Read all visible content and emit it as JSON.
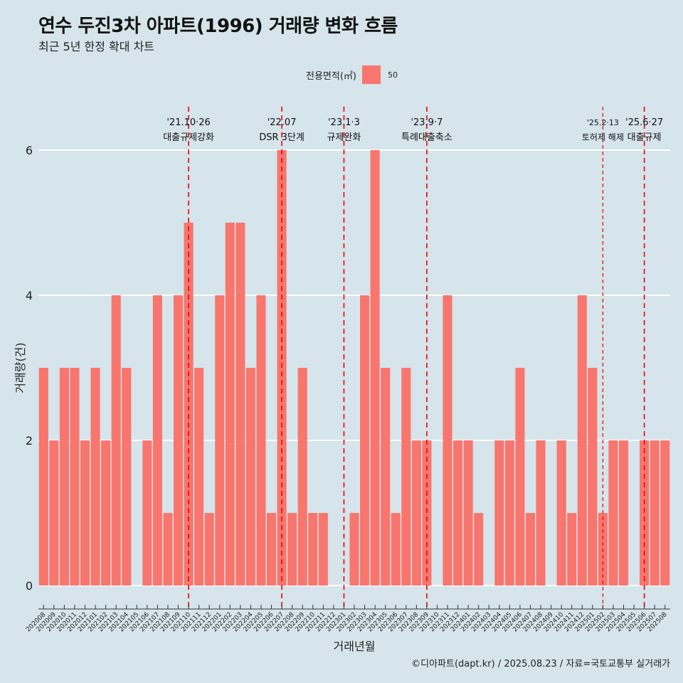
{
  "header": {
    "title": "연수 두진3차 아파트(1996) 거래량 변화 흐름",
    "subtitle": "최근 5년 한정 확대 차트"
  },
  "legend": {
    "title": "전용면적(㎡)",
    "entries": [
      {
        "label": "50",
        "color": "#f8766d"
      }
    ]
  },
  "caption": "©디아파트(dapt.kr) / 2025.08.23 / 자료=국토교통부 실거래가",
  "colors": {
    "background": "#d6e4eb",
    "bar": "#f8766d",
    "event_line": "#ee0000",
    "grid": "#ffffff"
  },
  "chart_data": {
    "type": "bar",
    "title": "연수 두진3차 아파트(1996) 거래량 변화 흐름",
    "subtitle": "최근 5년 한정 확대 차트",
    "xlabel": "거래년월",
    "ylabel": "거래량(건)",
    "ylim": [
      0,
      6
    ],
    "yticks": [
      0,
      2,
      4,
      6
    ],
    "grid": true,
    "legend_position": "top",
    "categories": [
      "202008",
      "202009",
      "202010",
      "202011",
      "202012",
      "202101",
      "202102",
      "202103",
      "202104",
      "202105",
      "202106",
      "202107",
      "202108",
      "202109",
      "202110",
      "202111",
      "202112",
      "202201",
      "202202",
      "202203",
      "202204",
      "202205",
      "202206",
      "202207",
      "202208",
      "202209",
      "202210",
      "202211",
      "202212",
      "202301",
      "202302",
      "202303",
      "202304",
      "202305",
      "202306",
      "202307",
      "202308",
      "202309",
      "202310",
      "202311",
      "202312",
      "202401",
      "202402",
      "202403",
      "202404",
      "202405",
      "202406",
      "202407",
      "202408",
      "202409",
      "202410",
      "202411",
      "202412",
      "202501",
      "202502",
      "202503",
      "202504",
      "202505",
      "202506",
      "202507",
      "202508"
    ],
    "series": [
      {
        "name": "50",
        "values": [
          3,
          2,
          3,
          3,
          2,
          3,
          2,
          4,
          3,
          0,
          2,
          4,
          1,
          4,
          5,
          3,
          1,
          4,
          5,
          5,
          3,
          4,
          1,
          6,
          1,
          3,
          1,
          1,
          0,
          0,
          1,
          4,
          6,
          3,
          1,
          3,
          2,
          2,
          0,
          4,
          2,
          2,
          1,
          0,
          2,
          2,
          3,
          1,
          2,
          0,
          2,
          1,
          4,
          3,
          1,
          2,
          2,
          0,
          2,
          2,
          2
        ]
      }
    ],
    "events": [
      {
        "month": "202110",
        "date": "'21.10·26",
        "label": "대출규제강화",
        "dashed": "long"
      },
      {
        "month": "202207",
        "date": "'22.07",
        "label": "DSR 3단계",
        "dashed": "long"
      },
      {
        "month": "202301",
        "date": "'23.1·3",
        "label": "규제완화",
        "dashed": "long"
      },
      {
        "month": "202309",
        "date": "'23.9·7",
        "label": "특례대출축소",
        "dashed": "long"
      },
      {
        "month": "202502",
        "date": "'25.2·13",
        "label": "토허제 해제",
        "dashed": "short"
      },
      {
        "month": "202506",
        "date": "'25.6·27",
        "label": "대출규제",
        "dashed": "long"
      }
    ]
  }
}
